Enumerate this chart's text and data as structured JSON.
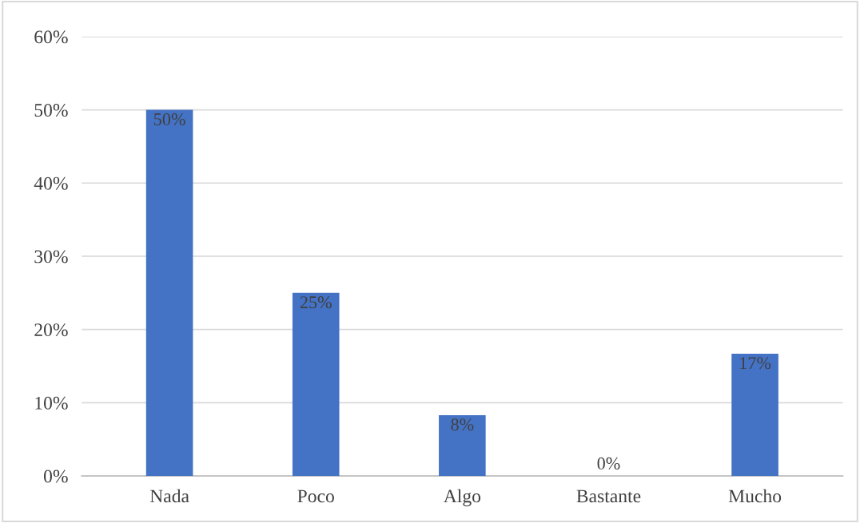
{
  "chart_data": {
    "type": "bar",
    "categories": [
      "Nada",
      "Poco",
      "Algo",
      "Bastante",
      "Mucho"
    ],
    "values": [
      50,
      25,
      8.3,
      0,
      16.7
    ],
    "value_labels": [
      "50%",
      "25%",
      "8%",
      "0%",
      "17%"
    ],
    "color": "#4472c4",
    "ylim": [
      0,
      60
    ],
    "yticks": [
      {
        "value": 0,
        "label": "0%"
      },
      {
        "value": 10,
        "label": "10%"
      },
      {
        "value": 20,
        "label": "20%"
      },
      {
        "value": 30,
        "label": "30%"
      },
      {
        "value": 40,
        "label": "40%"
      },
      {
        "value": 50,
        "label": "50%"
      },
      {
        "value": 60,
        "label": "60%"
      }
    ],
    "grid": "y"
  }
}
